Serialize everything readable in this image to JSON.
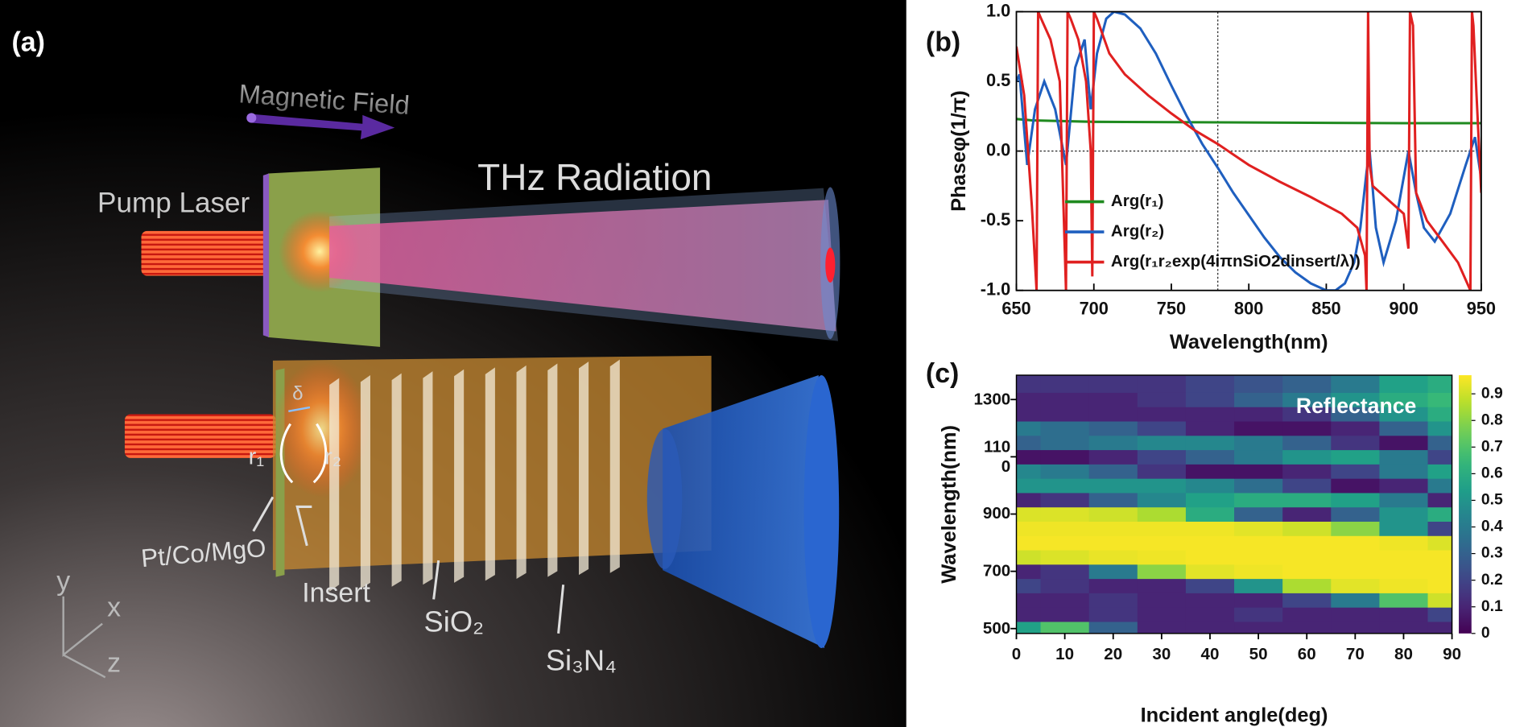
{
  "illustration": {
    "panel_label": "(a)",
    "magnetic_field": "Magnetic Field",
    "thz_radiation": "THz Radiation",
    "pump_laser": "Pump Laser",
    "delta": "δ",
    "r1": "r₁",
    "r2": "r₂",
    "pt_co_mgo": "Pt/Co/MgO",
    "insert": "Insert",
    "sio2": "SiO₂",
    "si3n4": "Si₃N₄",
    "axis_y": "y",
    "axis_x": "x",
    "axis_z": "z"
  },
  "chart_data": [
    {
      "type": "line",
      "panel_label": "(b)",
      "x_label": "Wavelength(nm)",
      "y_label": "Phaseφ(1/π)",
      "xlim": [
        650,
        950
      ],
      "xticks": [
        650,
        700,
        750,
        800,
        850,
        900,
        950
      ],
      "ylim": [
        -1,
        1
      ],
      "yticks": [
        {
          "value": -1,
          "label": "-1.0"
        },
        -0.5,
        {
          "value": 0,
          "label": "0.0"
        },
        0.5,
        {
          "value": 1,
          "label": "1.0"
        }
      ],
      "reference_lines": {
        "x": 780,
        "y": 0
      },
      "legend": "lower left",
      "series": [
        {
          "name": "Arg(r₁)",
          "color": "#1f8a1f",
          "x": [
            650,
            660,
            700,
            800,
            900,
            950
          ],
          "values": [
            0.23,
            0.22,
            0.21,
            0.205,
            0.2,
            0.2
          ]
        },
        {
          "name": "Arg(r₂)",
          "color": "#1f5fbf",
          "x": [
            650,
            652,
            657,
            662,
            668,
            675,
            682,
            688,
            694,
            698,
            702,
            708,
            713,
            720,
            730,
            740,
            750,
            760,
            770,
            780,
            790,
            800,
            810,
            820,
            830,
            840,
            850,
            856,
            862,
            868,
            872,
            876,
            878,
            882,
            887,
            895,
            903,
            908,
            913,
            920,
            930,
            940,
            946,
            950
          ],
          "values": [
            0.5,
            0.55,
            -0.1,
            0.3,
            0.5,
            0.3,
            -0.1,
            0.6,
            0.8,
            0.3,
            0.7,
            0.95,
            1.0,
            0.98,
            0.88,
            0.7,
            0.47,
            0.25,
            0.05,
            -0.12,
            -0.3,
            -0.46,
            -0.62,
            -0.76,
            -0.87,
            -0.95,
            -1.0,
            -1.0,
            -0.95,
            -0.8,
            -0.55,
            -0.15,
            0.0,
            -0.55,
            -0.8,
            -0.5,
            0.0,
            -0.3,
            -0.55,
            -0.65,
            -0.45,
            -0.1,
            0.1,
            -0.2
          ]
        },
        {
          "name": "Arg(r₁r₂exp(4iπnSiO2dinsert/λ))",
          "color": "#e02020",
          "x": [
            650,
            655,
            660,
            663,
            664,
            666,
            672,
            678,
            682,
            683,
            685,
            690,
            695,
            698,
            699,
            700,
            702,
            710,
            720,
            735,
            750,
            765,
            780,
            800,
            820,
            840,
            860,
            870,
            875,
            876,
            877,
            878,
            880,
            890,
            900,
            903,
            904,
            906,
            908,
            915,
            925,
            935,
            943,
            944,
            945,
            947,
            950
          ],
          "values": [
            0.75,
            0.4,
            -0.4,
            -1.0,
            1.0,
            0.95,
            0.8,
            0.5,
            -1.0,
            1.0,
            0.95,
            0.8,
            0.5,
            0.0,
            -0.9,
            1.0,
            0.95,
            0.7,
            0.55,
            0.4,
            0.27,
            0.15,
            0.05,
            -0.1,
            -0.22,
            -0.33,
            -0.45,
            -0.55,
            -0.75,
            -1.0,
            1.0,
            -0.1,
            -0.25,
            -0.35,
            -0.45,
            -0.7,
            1.0,
            0.9,
            -0.3,
            -0.5,
            -0.65,
            -0.8,
            -1.0,
            1.0,
            0.9,
            0.4,
            -0.3
          ]
        }
      ]
    },
    {
      "type": "heatmap",
      "panel_label": "(c)",
      "annotation": "Reflectance",
      "x_label": "Incident angle(deg)",
      "y_label": "Wavelength(nm)",
      "colormap": "viridis",
      "xlim": [
        0,
        90
      ],
      "xticks": [
        0,
        10,
        20,
        30,
        40,
        50,
        60,
        70,
        80,
        90
      ],
      "ylim": [
        483,
        1385
      ],
      "yticks": [
        500,
        700,
        900,
        {
          "value": 1100,
          "label": "110\n0"
        },
        1300
      ],
      "zlim": [
        0,
        0.97
      ],
      "zticks": [
        0,
        0.1,
        0.2,
        0.3,
        0.4,
        0.5,
        0.6,
        0.7,
        0.8,
        0.9
      ],
      "x": [
        0,
        10,
        20,
        30,
        40,
        50,
        60,
        70,
        80,
        90
      ],
      "y": [
        500,
        550,
        600,
        650,
        700,
        750,
        800,
        850,
        900,
        950,
        1000,
        1050,
        1100,
        1150,
        1200,
        1250,
        1300,
        1350
      ],
      "z": [
        [
          0.55,
          0.7,
          0.3,
          0.1,
          0.1,
          0.1,
          0.1,
          0.1,
          0.1,
          0.1
        ],
        [
          0.1,
          0.1,
          0.15,
          0.1,
          0.1,
          0.15,
          0.1,
          0.1,
          0.1,
          0.2
        ],
        [
          0.1,
          0.1,
          0.15,
          0.1,
          0.1,
          0.1,
          0.2,
          0.4,
          0.7,
          0.9
        ],
        [
          0.2,
          0.15,
          0.1,
          0.1,
          0.2,
          0.5,
          0.85,
          0.93,
          0.95,
          0.96
        ],
        [
          0.1,
          0.15,
          0.4,
          0.8,
          0.93,
          0.95,
          0.96,
          0.96,
          0.96,
          0.96
        ],
        [
          0.9,
          0.92,
          0.94,
          0.95,
          0.96,
          0.96,
          0.96,
          0.96,
          0.96,
          0.96
        ],
        [
          0.96,
          0.96,
          0.96,
          0.96,
          0.96,
          0.96,
          0.96,
          0.96,
          0.95,
          0.92
        ],
        [
          0.95,
          0.95,
          0.95,
          0.95,
          0.95,
          0.93,
          0.9,
          0.8,
          0.5,
          0.2
        ],
        [
          0.92,
          0.92,
          0.9,
          0.85,
          0.6,
          0.3,
          0.1,
          0.3,
          0.5,
          0.6
        ],
        [
          0.1,
          0.15,
          0.3,
          0.45,
          0.55,
          0.6,
          0.6,
          0.55,
          0.4,
          0.1
        ],
        [
          0.5,
          0.5,
          0.5,
          0.5,
          0.45,
          0.35,
          0.2,
          0.05,
          0.1,
          0.4
        ],
        [
          0.45,
          0.4,
          0.3,
          0.15,
          0.05,
          0.05,
          0.1,
          0.2,
          0.4,
          0.55
        ],
        [
          0.05,
          0.05,
          0.1,
          0.2,
          0.3,
          0.4,
          0.5,
          0.55,
          0.4,
          0.2
        ],
        [
          0.3,
          0.35,
          0.4,
          0.45,
          0.45,
          0.4,
          0.3,
          0.15,
          0.05,
          0.3
        ],
        [
          0.4,
          0.35,
          0.3,
          0.2,
          0.1,
          0.05,
          0.05,
          0.1,
          0.3,
          0.5
        ],
        [
          0.1,
          0.1,
          0.1,
          0.1,
          0.1,
          0.1,
          0.15,
          0.3,
          0.5,
          0.6
        ],
        [
          0.1,
          0.1,
          0.1,
          0.15,
          0.2,
          0.3,
          0.4,
          0.5,
          0.6,
          0.65
        ],
        [
          0.15,
          0.15,
          0.15,
          0.15,
          0.2,
          0.25,
          0.3,
          0.4,
          0.55,
          0.6
        ]
      ]
    }
  ]
}
